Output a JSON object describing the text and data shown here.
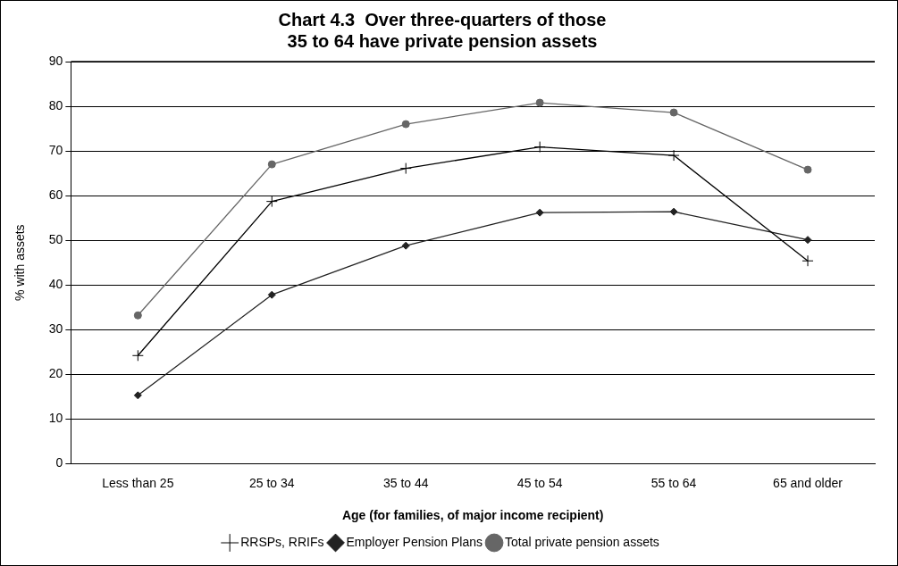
{
  "chart_data": {
    "type": "line",
    "title": "Chart 4.3  Over three-quarters of those 35 to 64 have private pension assets",
    "xlabel": "Age (for families, of major income recipient)",
    "ylabel": "% with assets",
    "categories": [
      "Less than 25",
      "25 to 34",
      "35 to 44",
      "45 to 54",
      "55 to 64",
      "65 and older"
    ],
    "series": [
      {
        "name": "RRSPs, RRIFs",
        "color": "#000000",
        "marker": "cross",
        "values": [
          24.2,
          58.7,
          66.1,
          70.9,
          69.0,
          45.4
        ]
      },
      {
        "name": "Employer Pension Plans",
        "color": "#222222",
        "marker": "diamond",
        "values": [
          15.3,
          37.8,
          48.8,
          56.2,
          56.4,
          50.1
        ]
      },
      {
        "name": "Total private pension assets",
        "color": "#666666",
        "marker": "circle",
        "values": [
          33.2,
          67.0,
          76.0,
          80.8,
          78.6,
          65.8
        ]
      }
    ],
    "ylim": [
      0,
      90
    ],
    "yticks": [
      0,
      10,
      20,
      30,
      40,
      50,
      60,
      70,
      80,
      90
    ],
    "grid": "y",
    "line_style": "solid",
    "legend": "bottom"
  }
}
